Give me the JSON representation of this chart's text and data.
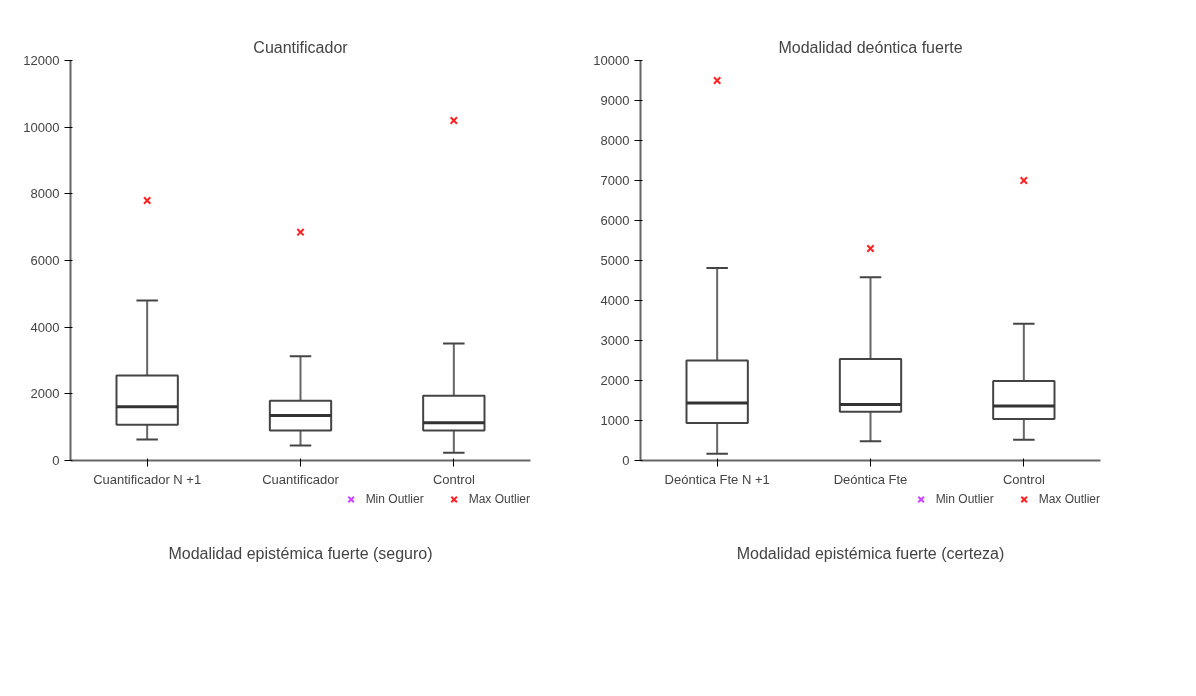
{
  "chart_data": [
    {
      "type": "box",
      "title": "Cuantificador",
      "categories": [
        "Cuantificador N +1",
        "Cuantificador",
        "Control"
      ],
      "boxes": [
        {
          "low": 630,
          "q1": 1070,
          "median": 1610,
          "q3": 2550,
          "high": 4800
        },
        {
          "low": 450,
          "q1": 900,
          "median": 1350,
          "q3": 1790,
          "high": 3130
        },
        {
          "low": 230,
          "q1": 900,
          "median": 1130,
          "q3": 1940,
          "high": 3510
        }
      ],
      "series": [
        {
          "type": "scatter",
          "name": "Min Outlier",
          "color": "#cc44ff",
          "values": [
            null,
            null,
            null
          ]
        },
        {
          "type": "scatter",
          "name": "Max Outlier",
          "color": "#ff2222",
          "values": [
            7800,
            6850,
            10200
          ]
        }
      ],
      "ylim": [
        0,
        12000
      ],
      "yticks": [
        0,
        2000,
        4000,
        6000,
        8000,
        10000,
        12000
      ],
      "grid": false,
      "legend": "bottom",
      "marker": "cross",
      "annotations": [
        "Modalidad epistémica fuerte (seguro)"
      ]
    },
    {
      "type": "box",
      "title": "Modalidad deóntica fuerte",
      "categories": [
        "Deóntica Fte N +1",
        "Deóntica Fte",
        "Control"
      ],
      "boxes": [
        {
          "low": 170,
          "q1": 940,
          "median": 1440,
          "q3": 2500,
          "high": 4810
        },
        {
          "low": 480,
          "q1": 1220,
          "median": 1400,
          "q3": 2540,
          "high": 4580
        },
        {
          "low": 520,
          "q1": 1040,
          "median": 1360,
          "q3": 1990,
          "high": 3420
        }
      ],
      "series": [
        {
          "type": "scatter",
          "name": "Min Outlier",
          "color": "#cc44ff",
          "values": [
            null,
            null,
            null
          ]
        },
        {
          "type": "scatter",
          "name": "Max Outlier",
          "color": "#ff2222",
          "values": [
            9500,
            5300,
            7000
          ]
        }
      ],
      "ylim": [
        0,
        10000
      ],
      "yticks": [
        0,
        1000,
        2000,
        3000,
        4000,
        5000,
        6000,
        7000,
        8000,
        9000,
        10000
      ],
      "grid": false,
      "legend": "bottom",
      "marker": "cross",
      "annotations": [
        "Modalidad epistémica fuerte (certeza)"
      ]
    }
  ]
}
